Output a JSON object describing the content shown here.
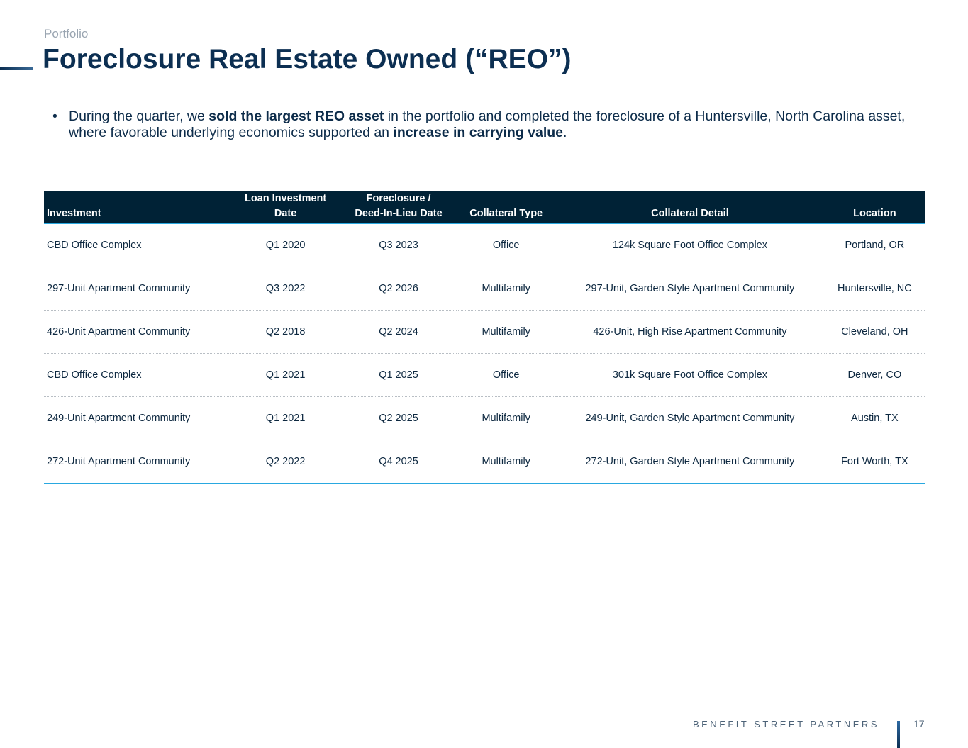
{
  "header": {
    "section": "Portfolio",
    "title": "Foreclosure Real Estate Owned (“REO”)"
  },
  "bullet": [
    "During the quarter, we ",
    "sold the largest REO asset",
    " in the portfolio and completed the foreclosure of a Huntersville, North Carolina asset, where favorable underlying economics supported an ",
    "increase in carrying value",
    "."
  ],
  "table": {
    "columns": [
      "Investment",
      "Loan Investment\nDate",
      "Foreclosure /\nDeed-In-Lieu Date",
      "Collateral Type",
      "Collateral Detail",
      "Location"
    ],
    "rows": [
      [
        "CBD Office Complex",
        "Q1 2020",
        "Q3 2023",
        "Office",
        "124k Square Foot Office Complex",
        "Portland, OR"
      ],
      [
        "297-Unit Apartment Community",
        "Q3 2022",
        "Q2 2026",
        "Multifamily",
        "297-Unit, Garden Style Apartment Community",
        "Huntersville, NC"
      ],
      [
        "426-Unit Apartment Community",
        "Q2 2018",
        "Q2 2024",
        "Multifamily",
        "426-Unit, High Rise Apartment Community",
        "Cleveland, OH"
      ],
      [
        "CBD Office Complex",
        "Q1 2021",
        "Q1 2025",
        "Office",
        "301k Square Foot Office Complex",
        "Denver, CO"
      ],
      [
        "249-Unit Apartment Community",
        "Q1 2021",
        "Q2 2025",
        "Multifamily",
        "249-Unit, Garden Style Apartment Community",
        "Austin, TX"
      ],
      [
        "272-Unit Apartment Community",
        "Q2 2022",
        "Q4 2025",
        "Multifamily",
        "272-Unit, Garden Style Apartment Community",
        "Fort Worth, TX"
      ]
    ]
  },
  "footer": {
    "brand": "BENEFIT STREET PARTNERS",
    "page": "17"
  }
}
